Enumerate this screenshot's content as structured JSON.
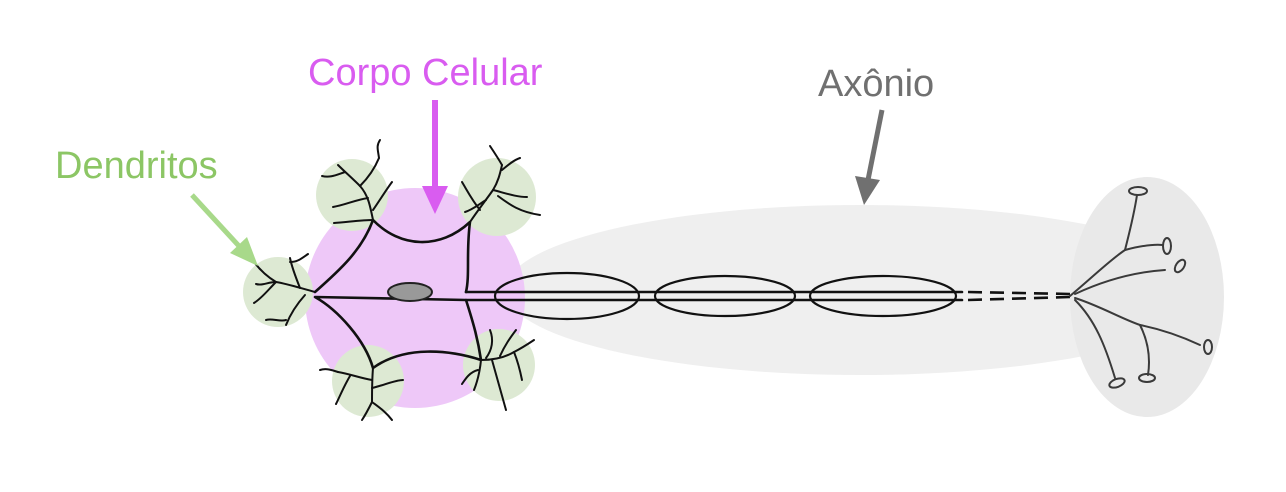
{
  "labels": {
    "dendrites": "Dendritos",
    "cell_body": "Corpo Celular",
    "axon": "Axônio"
  },
  "colors": {
    "dendrites": "#8cc665",
    "dendrite_highlight": "#dde9d3",
    "cell_body": "#d95cf0",
    "cell_body_fill": "#eec8f8",
    "axon": "#707070",
    "axon_highlight": "#efefef",
    "nucleus": "#999999"
  }
}
